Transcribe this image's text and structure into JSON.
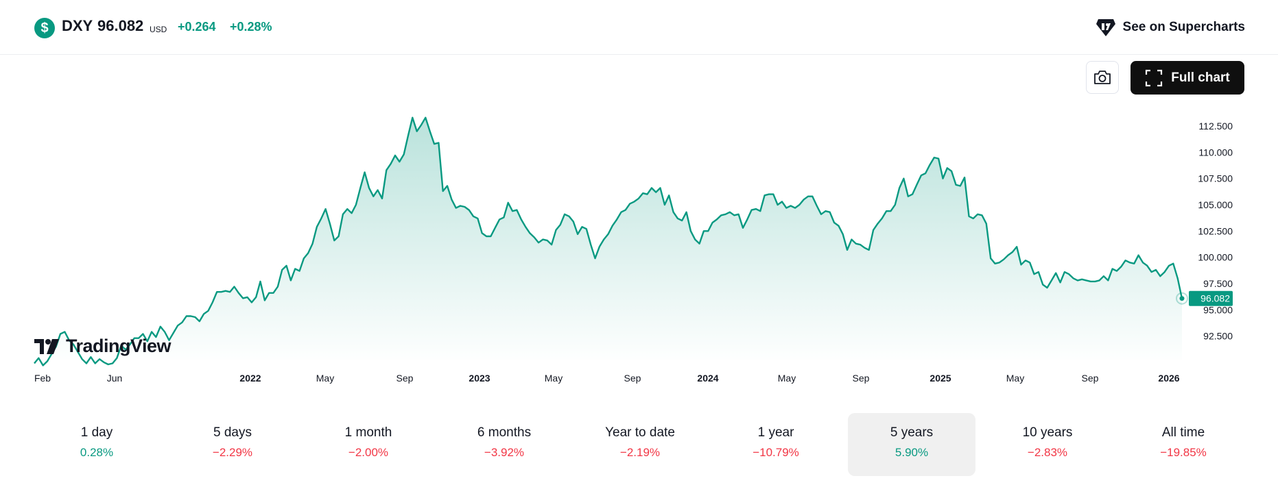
{
  "header": {
    "symbol_icon": "$",
    "symbol": "DXY",
    "price": "96.082",
    "currency": "USD",
    "change": "+0.264",
    "change_pct": "+0.28%",
    "supercharts_label": "See on Supercharts",
    "supercharts_icon": "tradingview-logo-icon"
  },
  "toolbar": {
    "camera_icon": "camera-icon",
    "full_chart_icon": "fullscreen-icon",
    "full_chart_label": "Full chart"
  },
  "branding": {
    "logo_text": "TradingView"
  },
  "colors": {
    "line": "#089981",
    "positive": "#089981",
    "negative": "#f23645",
    "active_period_bg": "#f0f0f0"
  },
  "chart_data": {
    "type": "area",
    "x_ticks": [
      "Feb",
      "Jun",
      "2022",
      "May",
      "Sep",
      "2023",
      "May",
      "Sep",
      "2024",
      "May",
      "Sep",
      "2025",
      "May",
      "Sep",
      "2026"
    ],
    "y_ticks": [
      "112.500",
      "110.000",
      "107.500",
      "105.000",
      "102.500",
      "100.000",
      "97.500",
      "95.000",
      "92.500"
    ],
    "ylim": [
      90.5,
      115.0
    ],
    "last_value_label": "96.082",
    "values": [
      89.9,
      90.4,
      89.7,
      90.1,
      90.8,
      91.5,
      92.7,
      92.9,
      92.1,
      91.7,
      91.0,
      90.3,
      89.9,
      90.5,
      89.9,
      90.3,
      90.0,
      89.8,
      89.9,
      90.4,
      91.6,
      91.2,
      91.7,
      92.3,
      92.3,
      92.7,
      92.0,
      92.9,
      92.4,
      93.4,
      92.9,
      92.1,
      92.8,
      93.5,
      93.8,
      94.4,
      94.4,
      94.3,
      93.9,
      94.6,
      94.9,
      95.7,
      96.7,
      96.7,
      96.8,
      96.7,
      97.2,
      96.6,
      96.1,
      96.2,
      95.7,
      96.2,
      97.7,
      95.9,
      96.6,
      96.6,
      97.2,
      98.8,
      99.2,
      97.8,
      98.9,
      98.7,
      99.9,
      100.4,
      101.3,
      102.9,
      103.7,
      104.6,
      103.2,
      101.6,
      102.0,
      104.1,
      104.6,
      104.2,
      105.0,
      106.6,
      108.1,
      106.6,
      105.8,
      106.4,
      105.6,
      108.3,
      108.9,
      109.7,
      109.1,
      109.8,
      111.6,
      113.3,
      112.0,
      112.6,
      113.3,
      112.0,
      110.8,
      110.9,
      106.3,
      106.8,
      105.5,
      104.7,
      104.9,
      104.8,
      104.5,
      103.9,
      103.7,
      102.3,
      102.0,
      102.0,
      102.8,
      103.6,
      103.8,
      105.2,
      104.4,
      104.5,
      103.6,
      102.9,
      102.3,
      101.9,
      101.4,
      101.7,
      101.6,
      101.2,
      102.6,
      103.1,
      104.1,
      103.9,
      103.4,
      102.2,
      102.9,
      102.7,
      101.2,
      99.9,
      101.0,
      101.7,
      102.2,
      103.0,
      103.6,
      104.3,
      104.5,
      105.1,
      105.3,
      105.6,
      106.1,
      106.0,
      106.6,
      106.2,
      106.6,
      105.0,
      105.9,
      104.3,
      103.7,
      103.5,
      104.3,
      102.5,
      101.7,
      101.3,
      102.5,
      102.5,
      103.3,
      103.6,
      104.0,
      104.1,
      104.3,
      104.0,
      104.1,
      102.8,
      103.6,
      104.5,
      104.6,
      104.4,
      105.9,
      106.0,
      106.0,
      105.0,
      105.3,
      104.7,
      104.9,
      104.7,
      105.0,
      105.5,
      105.8,
      105.8,
      104.9,
      104.1,
      104.4,
      104.3,
      103.3,
      103.0,
      102.2,
      100.7,
      101.7,
      101.3,
      101.2,
      100.9,
      100.7,
      102.6,
      103.2,
      103.7,
      104.4,
      104.4,
      105.0,
      106.6,
      107.5,
      105.8,
      106.0,
      106.9,
      107.8,
      108.0,
      108.8,
      109.5,
      109.4,
      107.5,
      108.5,
      108.2,
      106.9,
      106.8,
      107.6,
      103.9,
      103.7,
      104.1,
      104.0,
      103.2,
      99.9,
      99.4,
      99.5,
      99.8,
      100.2,
      100.5,
      101.0,
      99.3,
      99.7,
      99.5,
      98.4,
      98.6,
      97.4,
      97.1,
      97.8,
      98.5,
      97.6,
      98.6,
      98.4,
      98.0,
      97.8,
      97.9,
      97.8,
      97.7,
      97.7,
      97.8,
      98.2,
      97.8,
      98.9,
      98.7,
      99.1,
      99.7,
      99.5,
      99.4,
      100.2,
      99.5,
      99.2,
      98.6,
      98.8,
      98.2,
      98.6,
      99.2,
      99.4,
      98.0,
      96.082
    ]
  },
  "periods": [
    {
      "label": "1 day",
      "value": "0.28%",
      "tone": "pos"
    },
    {
      "label": "5 days",
      "value": "−2.29%",
      "tone": "neg"
    },
    {
      "label": "1 month",
      "value": "−2.00%",
      "tone": "neg"
    },
    {
      "label": "6 months",
      "value": "−3.92%",
      "tone": "neg"
    },
    {
      "label": "Year to date",
      "value": "−2.19%",
      "tone": "neg"
    },
    {
      "label": "1 year",
      "value": "−10.79%",
      "tone": "neg"
    },
    {
      "label": "5 years",
      "value": "5.90%",
      "tone": "pos",
      "active": true
    },
    {
      "label": "10 years",
      "value": "−2.83%",
      "tone": "neg"
    },
    {
      "label": "All time",
      "value": "−19.85%",
      "tone": "neg"
    }
  ]
}
